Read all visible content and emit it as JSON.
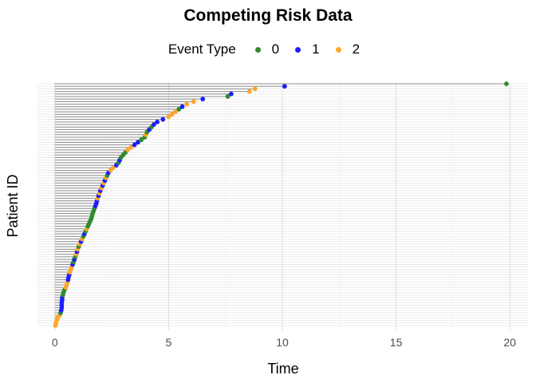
{
  "chart_data": {
    "type": "scatter",
    "title": "Competing Risk Data",
    "xlabel": "Time",
    "ylabel": "Patient ID",
    "xlim": [
      0,
      20.8
    ],
    "xticks": [
      0,
      5,
      10,
      15,
      20
    ],
    "grid": true,
    "legend": {
      "title": "Event Type",
      "placement": "top",
      "entries": [
        {
          "label": "0",
          "color": "#2e8b2e"
        },
        {
          "label": "1",
          "color": "#1e1eff"
        },
        {
          "label": "2",
          "color": "#ffa52a"
        }
      ]
    },
    "points": [
      [
        0.02,
        2
      ],
      [
        0.05,
        2
      ],
      [
        0.08,
        2
      ],
      [
        0.12,
        2
      ],
      [
        0.2,
        2
      ],
      [
        0.25,
        0
      ],
      [
        0.28,
        1
      ],
      [
        0.3,
        1
      ],
      [
        0.3,
        1
      ],
      [
        0.3,
        1
      ],
      [
        0.32,
        1
      ],
      [
        0.32,
        1
      ],
      [
        0.35,
        0
      ],
      [
        0.38,
        0
      ],
      [
        0.42,
        0
      ],
      [
        0.48,
        2
      ],
      [
        0.52,
        2
      ],
      [
        0.55,
        2
      ],
      [
        0.58,
        1
      ],
      [
        0.6,
        1
      ],
      [
        0.63,
        1
      ],
      [
        0.66,
        2
      ],
      [
        0.7,
        2
      ],
      [
        0.74,
        2
      ],
      [
        0.78,
        1
      ],
      [
        0.82,
        0
      ],
      [
        0.86,
        1
      ],
      [
        0.9,
        0
      ],
      [
        0.94,
        2
      ],
      [
        0.97,
        1
      ],
      [
        1.0,
        2
      ],
      [
        1.05,
        0
      ],
      [
        1.1,
        2
      ],
      [
        1.15,
        1
      ],
      [
        1.2,
        2
      ],
      [
        1.25,
        0
      ],
      [
        1.3,
        1
      ],
      [
        1.35,
        0
      ],
      [
        1.4,
        2
      ],
      [
        1.45,
        0
      ],
      [
        1.5,
        0
      ],
      [
        1.55,
        0
      ],
      [
        1.6,
        0
      ],
      [
        1.63,
        0
      ],
      [
        1.66,
        0
      ],
      [
        1.7,
        0
      ],
      [
        1.74,
        0
      ],
      [
        1.78,
        1
      ],
      [
        1.82,
        1
      ],
      [
        1.85,
        1
      ],
      [
        1.88,
        2
      ],
      [
        1.92,
        1
      ],
      [
        1.96,
        2
      ],
      [
        2.0,
        1
      ],
      [
        2.05,
        2
      ],
      [
        2.1,
        1
      ],
      [
        2.15,
        2
      ],
      [
        2.2,
        1
      ],
      [
        2.25,
        2
      ],
      [
        2.3,
        0
      ],
      [
        2.35,
        1
      ],
      [
        2.45,
        2
      ],
      [
        2.55,
        2
      ],
      [
        2.7,
        1
      ],
      [
        2.8,
        0
      ],
      [
        2.85,
        1
      ],
      [
        2.9,
        0
      ],
      [
        3.0,
        0
      ],
      [
        3.1,
        0
      ],
      [
        3.2,
        2
      ],
      [
        3.35,
        2
      ],
      [
        3.5,
        1
      ],
      [
        3.65,
        1
      ],
      [
        3.8,
        0
      ],
      [
        3.95,
        0
      ],
      [
        4.0,
        2
      ],
      [
        4.05,
        0
      ],
      [
        4.15,
        1
      ],
      [
        4.25,
        0
      ],
      [
        4.35,
        1
      ],
      [
        4.5,
        1
      ],
      [
        4.75,
        1
      ],
      [
        5.0,
        2
      ],
      [
        5.15,
        2
      ],
      [
        5.3,
        2
      ],
      [
        5.45,
        0
      ],
      [
        5.6,
        1
      ],
      [
        5.8,
        2
      ],
      [
        6.1,
        2
      ],
      [
        6.5,
        1
      ],
      [
        7.6,
        0
      ],
      [
        7.75,
        1
      ],
      [
        8.55,
        2
      ],
      [
        8.8,
        2
      ],
      [
        10.1,
        1
      ],
      [
        19.85,
        0
      ]
    ]
  }
}
